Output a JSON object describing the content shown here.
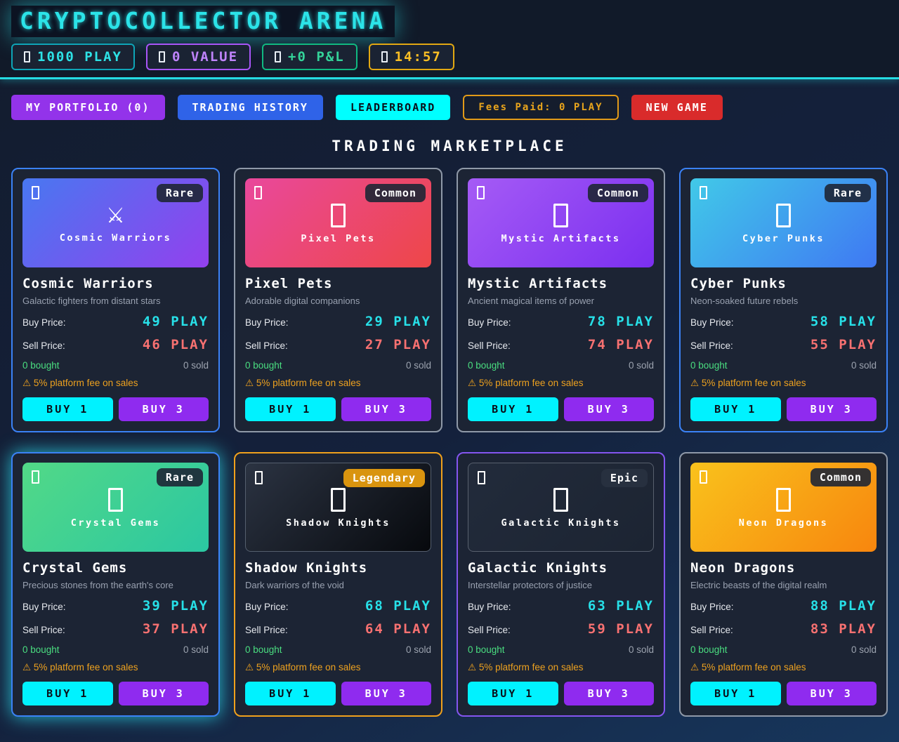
{
  "header": {
    "title": "CRYPTOCOLLECTOR ARENA",
    "stats": [
      {
        "label": "1000 PLAY",
        "icon": "coin-icon",
        "color": "#2de2e6",
        "border": "#0ea5b7"
      },
      {
        "label": "0 VALUE",
        "icon": "value-icon",
        "color": "#c084fc",
        "border": "#a855f7"
      },
      {
        "label": "+0 P&L",
        "icon": "pnl-icon",
        "color": "#34d399",
        "border": "#10b981"
      },
      {
        "label": "14:57",
        "icon": "timer-icon",
        "color": "#fbbf24",
        "border": "#e2a812"
      }
    ]
  },
  "nav": {
    "portfolio": "MY PORTFOLIO (0)",
    "history": "TRADING HISTORY",
    "leaderboard": "LEADERBOARD",
    "fees": "Fees Paid: 0 PLAY",
    "new_game": "NEW GAME"
  },
  "section_title": "TRADING MARKETPLACE",
  "labels": {
    "buy_price": "Buy Price:",
    "sell_price": "Sell Price:",
    "warning_icon": "⚠",
    "fee_warning": "5% platform fee on sales",
    "buy1": "BUY 1",
    "buy3": "BUY 3"
  },
  "cards": [
    {
      "name": "Cosmic Warriors",
      "rarity": "Rare",
      "description": "Galactic fighters from distant stars",
      "buy_price": "49 PLAY",
      "sell_price": "46 PLAY",
      "bought": "0 bought",
      "sold": "0 sold",
      "art_icon": "⚔",
      "art_bg": "linear-gradient(135deg,#4878f0,#9340ee)",
      "art_border": "",
      "border": "#3b82f6",
      "badge_bg": "rgba(30,38,53,0.9)",
      "glow": ""
    },
    {
      "name": "Pixel Pets",
      "rarity": "Common",
      "description": "Adorable digital companions",
      "buy_price": "29 PLAY",
      "sell_price": "27 PLAY",
      "bought": "0 bought",
      "sold": "0 sold",
      "art_icon": "",
      "art_bg": "linear-gradient(135deg,#e9489c,#ee4748)",
      "art_border": "",
      "border": "#8f99a8",
      "badge_bg": "rgba(30,38,53,0.9)",
      "glow": ""
    },
    {
      "name": "Mystic Artifacts",
      "rarity": "Common",
      "description": "Ancient magical items of power",
      "buy_price": "78 PLAY",
      "sell_price": "74 PLAY",
      "bought": "0 bought",
      "sold": "0 sold",
      "art_icon": "",
      "art_bg": "linear-gradient(135deg,#a55bf5,#7b2ff0)",
      "art_border": "",
      "border": "#8f99a8",
      "badge_bg": "rgba(30,38,53,0.9)",
      "glow": ""
    },
    {
      "name": "Cyber Punks",
      "rarity": "Rare",
      "description": "Neon-soaked future rebels",
      "buy_price": "58 PLAY",
      "sell_price": "55 PLAY",
      "bought": "0 bought",
      "sold": "0 sold",
      "art_icon": "",
      "art_bg": "linear-gradient(135deg,#41c9e8,#3f78f3)",
      "art_border": "",
      "border": "#3b82f6",
      "badge_bg": "rgba(30,38,53,0.9)",
      "glow": ""
    },
    {
      "name": "Crystal Gems",
      "rarity": "Rare",
      "description": "Precious stones from the earth's core",
      "buy_price": "39 PLAY",
      "sell_price": "37 PLAY",
      "bought": "0 bought",
      "sold": "0 sold",
      "art_icon": "",
      "art_bg": "linear-gradient(135deg,#52d987,#2bc7a2)",
      "art_border": "",
      "border": "#3b82f6",
      "badge_bg": "rgba(30,38,53,0.9)",
      "glow": "0 0 26px rgba(44,214,230,0.85)"
    },
    {
      "name": "Shadow Knights",
      "rarity": "Legendary",
      "description": "Dark warriors of the void",
      "buy_price": "68 PLAY",
      "sell_price": "64 PLAY",
      "bought": "0 bought",
      "sold": "0 sold",
      "art_icon": "",
      "art_bg": "linear-gradient(135deg,#2b3342,#07090d)",
      "art_border": "1px solid #555f6e",
      "border": "#f0a11c",
      "badge_bg": "#d9940f",
      "glow": ""
    },
    {
      "name": "Galactic Knights",
      "rarity": "Epic",
      "description": "Interstellar protectors of justice",
      "buy_price": "63 PLAY",
      "sell_price": "59 PLAY",
      "bought": "0 bought",
      "sold": "0 sold",
      "art_icon": "",
      "art_bg": "linear-gradient(135deg,#222b3b,#1c2432)",
      "art_border": "1px solid #58606e",
      "border": "#8455f0",
      "badge_bg": "rgba(40,48,64,0.95)",
      "glow": ""
    },
    {
      "name": "Neon Dragons",
      "rarity": "Common",
      "description": "Electric beasts of the digital realm",
      "buy_price": "88 PLAY",
      "sell_price": "83 PLAY",
      "bought": "0 bought",
      "sold": "0 sold",
      "art_icon": "",
      "art_bg": "linear-gradient(135deg,#f9c21c,#f8860e)",
      "art_border": "",
      "border": "#8f99a8",
      "badge_bg": "rgba(30,38,53,0.9)",
      "glow": ""
    }
  ]
}
